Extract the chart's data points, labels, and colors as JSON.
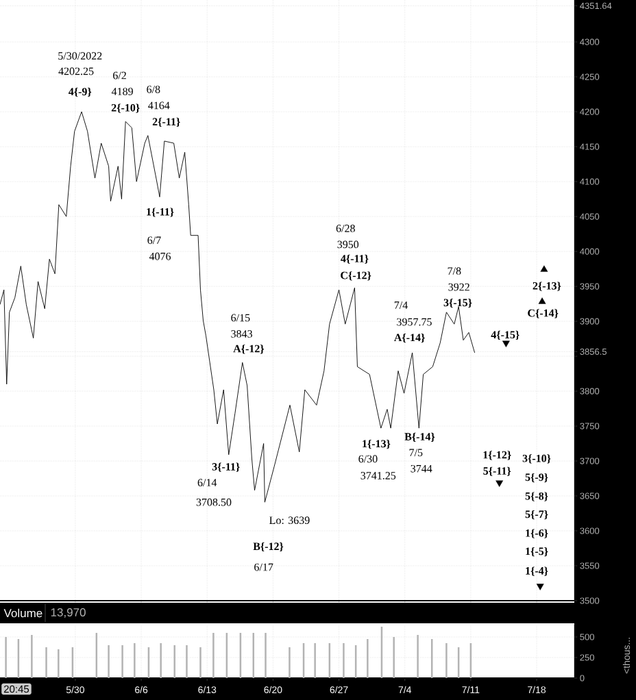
{
  "chart_data": [
    {
      "type": "line",
      "xlim": [
        "2022-05-22T00:00",
        "2022-07-22T00:00"
      ],
      "ylim": [
        3500,
        4360
      ],
      "xticks": [
        {
          "value": "2022-05-30",
          "label": null
        },
        {
          "value": "2022-06-06",
          "label": null
        },
        {
          "value": "2022-06-13",
          "label": null
        },
        {
          "value": "2022-06-20",
          "label": null
        },
        {
          "value": "2022-06-27",
          "label": null
        },
        {
          "value": "2022-07-04",
          "label": null
        },
        {
          "value": "2022-07-11",
          "label": null
        },
        {
          "value": "2022-07-18",
          "label": null
        }
      ],
      "yticks": [
        3500,
        3550,
        3600,
        3650,
        3700,
        3750,
        3800,
        {
          "value": 3850,
          "label": null
        },
        3856.5,
        3900,
        3950,
        4000,
        4050,
        4100,
        4150,
        4200,
        4250,
        4300,
        4351.64
      ],
      "grid": true,
      "tick_labels": "y",
      "series": [
        {
          "type": "line",
          "color": "#000000",
          "x": [
            "2022-05-22T00:00",
            "2022-05-22T10:00",
            "2022-05-22T17:00",
            "2022-05-23T00:00",
            "2022-05-23T14:00",
            "2022-05-24T05:00",
            "2022-05-24T19:00",
            "2022-05-25T13:00",
            "2022-05-26T01:00",
            "2022-05-26T18:00",
            "2022-05-27T06:00",
            "2022-05-27T20:00",
            "2022-05-28T06:00",
            "2022-05-29T01:00",
            "2022-05-29T12:00",
            "2022-05-29T22:00",
            "2022-05-30T16:00",
            "2022-05-31T07:00",
            "2022-06-01T02:00",
            "2022-06-01T18:00",
            "2022-06-02T13:00",
            "2022-06-02T18:00",
            "2022-06-03T13:00",
            "2022-06-03T22:00",
            "2022-06-04T08:00",
            "2022-06-05T00:00",
            "2022-06-05T12:00",
            "2022-06-06T09:00",
            "2022-06-06T17:00",
            "2022-06-07T14:00",
            "2022-06-07T23:00",
            "2022-06-08T11:00",
            "2022-06-09T11:00",
            "2022-06-10T01:00",
            "2022-06-10T15:00",
            "2022-06-11T01:00",
            "2022-06-11T06:00",
            "2022-06-12T01:00",
            "2022-06-12T07:00",
            "2022-06-12T14:00",
            "2022-06-12T21:00",
            "2022-06-13T17:00",
            "2022-06-14T02:00",
            "2022-06-14T18:00",
            "2022-06-15T07:00",
            "2022-06-15T23:00",
            "2022-06-16T18:00",
            "2022-06-17T06:00",
            "2022-06-17T18:00",
            "2022-06-18T01:00",
            "2022-06-19T00:00",
            "2022-06-19T03:00",
            "2022-06-20T03:00",
            "2022-06-21T19:00",
            "2022-06-22T19:00",
            "2022-06-23T09:00",
            "2022-06-24T15:00",
            "2022-06-25T10:00",
            "2022-06-26T00:00",
            "2022-06-27T00:00",
            "2022-06-27T16:00",
            "2022-06-28T16:00",
            "2022-06-28T23:00",
            "2022-06-30T06:00",
            "2022-07-01T11:00",
            "2022-07-02T03:00",
            "2022-07-02T12:00",
            "2022-07-03T07:00",
            "2022-07-03T22:00",
            "2022-07-04T19:00",
            "2022-07-05T12:00",
            "2022-07-05T23:00",
            "2022-07-06T23:00",
            "2022-07-07T18:00",
            "2022-07-08T10:00",
            "2022-07-09T06:00",
            "2022-07-09T17:00",
            "2022-07-10T05:00",
            "2022-07-10T19:00",
            "2022-07-11T10:00"
          ],
          "values": [
            3924,
            3945,
            3810,
            3913,
            3934,
            3979,
            3924,
            3876,
            3957,
            3918,
            3989,
            3968,
            4067,
            4050,
            4122,
            4172,
            4200,
            4172,
            4105,
            4155,
            4122,
            4072,
            4122,
            4075,
            4186,
            4177,
            4100,
            4155,
            4166,
            4105,
            4078,
            4158,
            4155,
            4105,
            4142,
            4067,
            4023,
            4023,
            3945,
            3901,
            3879,
            3802,
            3753,
            3802,
            3709,
            3768,
            3841,
            3808,
            3703,
            3658,
            3725,
            3641,
            3692,
            3780,
            3713,
            3802,
            3780,
            3829,
            3896,
            3945,
            3896,
            3948,
            3835,
            3824,
            3747,
            3774,
            3747,
            3829,
            3797,
            3855,
            3747,
            3824,
            3835,
            3869,
            3913,
            3896,
            3921,
            3873,
            3884,
            3855
          ]
        },
        {
          "type": "scatter",
          "color": "#000000",
          "marker": "triangle",
          "x": [
            "2022-07-18T19:00",
            "2022-07-18T14:00"
          ],
          "values": [
            3974,
            3928
          ]
        },
        {
          "type": "scatter",
          "color": "#000000",
          "marker": "triangle",
          "x": [
            "2022-07-14T18:00",
            "2022-07-14T01:00",
            "2022-07-18T09:00"
          ],
          "values": [
            3869,
            3669,
            3521
          ]
        }
      ],
      "annotations": [
        "5/30/2022",
        "4202.25",
        "**4{-9}**",
        "6/2",
        "4189",
        "**2{-10}**",
        "6/8",
        "4164",
        "**2{-11}**",
        "**1{-11}**",
        "6/7",
        "4076",
        "6/15",
        "3843",
        "**A{-12}**",
        "**3{-11}**",
        "6/14",
        "3708.50",
        "Lo: 3639",
        "**B{-12}**",
        "6/17",
        "6/28",
        "3950",
        "**4{-11}**",
        "**C{-12}**",
        "7/4",
        "3957.75",
        "**A{-14}**",
        "7/8",
        "3922",
        "**3{-15}**",
        "**1{-13}**",
        "6/30",
        "3741.25",
        "**B{-14}**",
        "7/5",
        "3744",
        "**4{-15}**",
        "**2{-13}**",
        "**C{-14}**",
        "**1{-12}**",
        "**5{-11}**",
        "**3{-10}**",
        "**5{-9}**",
        "**5{-8}**",
        "**5{-7}**",
        "**1{-6}**",
        "**1{-5}**",
        "**1{-4}**"
      ]
    },
    {
      "type": "bar",
      "title": "Volume",
      "subtitle": "13,970",
      "ylabel": "<thous...",
      "color": "#b3b3b3",
      "xlim": [
        "2022-05-22T00:00",
        "2022-07-22T00:00"
      ],
      "ylim": [
        0,
        650
      ],
      "yticks": [
        0,
        250,
        500
      ],
      "xticks": [
        {
          "value": "2022-05-30",
          "label": "5/30"
        },
        {
          "value": "2022-06-06",
          "label": "6/6"
        },
        {
          "value": "2022-06-13",
          "label": "6/13"
        },
        {
          "value": "2022-06-20",
          "label": "6/20"
        },
        {
          "value": "2022-06-27",
          "label": "6/27"
        },
        {
          "value": "2022-07-04",
          "label": "7/4"
        },
        {
          "value": "2022-07-11",
          "label": "7/11"
        },
        {
          "value": "2022-07-18",
          "label": "7/18"
        }
      ],
      "grid": true,
      "annotations": [
        "20:45"
      ],
      "x": [
        "2022-05-22T15:00",
        "2022-05-23T23:00",
        "2022-05-25T09:00",
        "2022-05-26T22:00",
        "2022-05-28T05:00",
        "2022-05-29T17:00",
        "2022-06-01T06:00",
        "2022-06-02T13:00",
        "2022-06-04T00:00",
        "2022-06-05T07:00",
        "2022-06-06T19:00",
        "2022-06-08T02:00",
        "2022-06-09T13:00",
        "2022-06-10T20:00",
        "2022-06-12T07:00",
        "2022-06-13T16:00",
        "2022-06-15T02:00",
        "2022-06-16T13:00",
        "2022-06-17T22:00",
        "2022-06-19T05:00",
        "2022-06-21T18:00",
        "2022-06-23T06:00",
        "2022-06-24T11:00",
        "2022-06-26T00:00",
        "2022-06-27T12:00",
        "2022-06-28T19:00",
        "2022-06-30T01:00",
        "2022-07-01T13:00",
        "2022-07-02T20:00",
        "2022-07-05T09:00",
        "2022-07-06T21:00",
        "2022-07-08T10:00",
        "2022-07-09T17:00",
        "2022-07-11T00:00"
      ],
      "values": [
        500,
        475,
        525,
        375,
        350,
        375,
        550,
        400,
        400,
        425,
        375,
        425,
        400,
        400,
        375,
        550,
        550,
        550,
        550,
        550,
        375,
        425,
        425,
        425,
        425,
        400,
        475,
        625,
        500,
        525,
        475,
        425,
        375,
        425
      ]
    }
  ]
}
